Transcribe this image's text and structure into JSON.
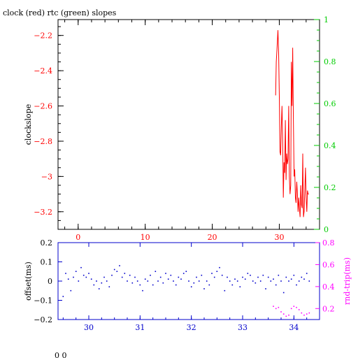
{
  "title": "clock (red) rtc (green) slopes",
  "footer": "0 0",
  "colors": {
    "clock": "#ff0000",
    "rtc": "#00cc00",
    "offset": "#0000cc",
    "rtrip": "#ff00ff",
    "axis": "#000000"
  },
  "chart_data": [
    {
      "type": "line",
      "title": "clock (red) rtc (green) slopes",
      "ylabel": "clockslope",
      "xlim": [
        -3,
        36
      ],
      "ylim": [
        -3.3,
        -2.11
      ],
      "y2lim": [
        0,
        1
      ],
      "x_ticks": [
        0,
        10,
        20,
        30
      ],
      "y_ticks": [
        -3.2,
        -3,
        -2.8,
        -2.6,
        -2.4,
        -2.2
      ],
      "y2_ticks": [
        0,
        0.2,
        0.4,
        0.6,
        0.8,
        1
      ],
      "grid": false,
      "series": [
        {
          "name": "clock",
          "color": "#ff0000",
          "x": [
            29.45,
            29.55,
            29.65,
            29.75,
            29.8,
            29.9,
            30.0,
            30.1,
            30.2,
            30.3,
            30.4,
            30.5,
            30.6,
            30.7,
            30.8,
            30.9,
            31.0,
            31.1,
            31.2,
            31.3,
            31.4,
            31.5,
            31.6,
            31.7,
            31.8,
            31.9,
            32.0,
            32.1,
            32.2,
            32.3,
            32.4,
            32.5,
            32.6,
            32.7,
            32.8,
            32.9,
            33.0,
            33.1,
            33.2,
            33.3,
            33.4,
            33.5,
            33.6,
            33.7,
            33.8,
            33.9,
            34.0,
            34.1,
            34.2,
            34.3,
            34.4
          ],
          "y": [
            -2.54,
            -2.35,
            -2.28,
            -2.2,
            -2.17,
            -2.3,
            -2.55,
            -2.86,
            -2.88,
            -2.72,
            -2.6,
            -2.8,
            -3.12,
            -2.92,
            -2.98,
            -2.68,
            -3.02,
            -2.87,
            -2.93,
            -2.9,
            -2.6,
            -3.0,
            -3.1,
            -3.05,
            -2.35,
            -2.6,
            -2.27,
            -2.68,
            -3.0,
            -2.96,
            -3.12,
            -3.15,
            -3.03,
            -3.1,
            -3.2,
            -3.12,
            -3.18,
            -3.23,
            -3.05,
            -3.16,
            -3.18,
            -2.87,
            -3.23,
            -3.2,
            -3.08,
            -2.95,
            -3.12,
            -3.2,
            -3.08,
            -3.1,
            -3.1
          ]
        }
      ]
    },
    {
      "type": "scatter",
      "ylabel": "offset(ms)",
      "y2label": "rnd-trip(ms)",
      "xlim": [
        29.4,
        34.5
      ],
      "ylim": [
        -0.2,
        0.2
      ],
      "y2lim": [
        0.1,
        0.8
      ],
      "x_ticks": [
        30,
        31,
        32,
        33,
        34
      ],
      "y_ticks": [
        -0.2,
        -0.1,
        0,
        0.1,
        0.2
      ],
      "y2_ticks": [
        0.2,
        0.4,
        0.6,
        0.8
      ],
      "grid": false,
      "series": [
        {
          "name": "offset",
          "color": "#0000cc",
          "x": [
            29.5,
            29.55,
            29.6,
            29.65,
            29.7,
            29.75,
            29.8,
            29.85,
            29.9,
            29.95,
            30.0,
            30.05,
            30.1,
            30.15,
            30.2,
            30.25,
            30.3,
            30.35,
            30.4,
            30.45,
            30.5,
            30.55,
            30.6,
            30.65,
            30.7,
            30.75,
            30.8,
            30.85,
            30.9,
            30.95,
            31.0,
            31.05,
            31.1,
            31.15,
            31.2,
            31.25,
            31.3,
            31.35,
            31.4,
            31.45,
            31.5,
            31.55,
            31.6,
            31.65,
            31.7,
            31.75,
            31.8,
            31.85,
            31.9,
            31.95,
            32.0,
            32.05,
            32.1,
            32.15,
            32.2,
            32.25,
            32.3,
            32.35,
            32.4,
            32.45,
            32.5,
            32.55,
            32.6,
            32.65,
            32.7,
            32.75,
            32.8,
            32.85,
            32.9,
            32.95,
            33.0,
            33.05,
            33.1,
            33.15,
            33.2,
            33.25,
            33.3,
            33.35,
            33.4,
            33.45,
            33.5,
            33.55,
            33.6,
            33.65,
            33.7,
            33.75,
            33.8,
            33.85,
            33.9,
            33.95,
            34.0,
            34.05,
            34.1,
            34.15,
            34.2,
            34.25,
            34.3
          ],
          "y": [
            -0.08,
            0.04,
            0.01,
            -0.05,
            0.02,
            0.05,
            0.0,
            0.07,
            0.03,
            0.02,
            0.04,
            0.01,
            -0.02,
            0.0,
            -0.04,
            -0.01,
            0.02,
            0.0,
            -0.03,
            0.03,
            0.06,
            0.05,
            0.08,
            0.02,
            0.04,
            0.0,
            0.03,
            -0.01,
            0.02,
            0.0,
            -0.02,
            -0.05,
            0.01,
            0.0,
            0.03,
            -0.02,
            0.05,
            0.0,
            0.02,
            -0.01,
            0.04,
            0.01,
            0.03,
            0.0,
            -0.02,
            0.02,
            0.01,
            0.04,
            0.05,
            0.0,
            -0.03,
            -0.01,
            0.02,
            0.0,
            0.03,
            -0.04,
            0.0,
            -0.02,
            0.04,
            0.02,
            0.05,
            0.07,
            0.03,
            -0.05,
            0.02,
            0.0,
            -0.02,
            0.01,
            0.0,
            -0.03,
            0.02,
            0.01,
            0.04,
            0.03,
            0.0,
            -0.01,
            0.02,
            0.0,
            0.03,
            -0.04,
            0.02,
            0.0,
            0.01,
            -0.02,
            0.03,
            0.0,
            -0.06,
            0.02,
            0.0,
            0.01,
            0.03,
            -0.02,
            0.0,
            0.02,
            0.01,
            0.04,
            0.0
          ]
        },
        {
          "name": "rnd-trip",
          "color": "#ff00ff",
          "x": [
            33.6,
            33.65,
            33.7,
            33.75,
            33.8,
            33.85,
            33.9,
            33.95,
            34.0,
            34.05,
            34.1,
            34.15,
            34.2,
            34.25,
            34.3
          ],
          "y": [
            0.22,
            0.2,
            0.21,
            0.17,
            0.15,
            0.13,
            0.14,
            0.2,
            0.22,
            0.21,
            0.19,
            0.16,
            0.14,
            0.15,
            0.16
          ]
        }
      ]
    }
  ]
}
